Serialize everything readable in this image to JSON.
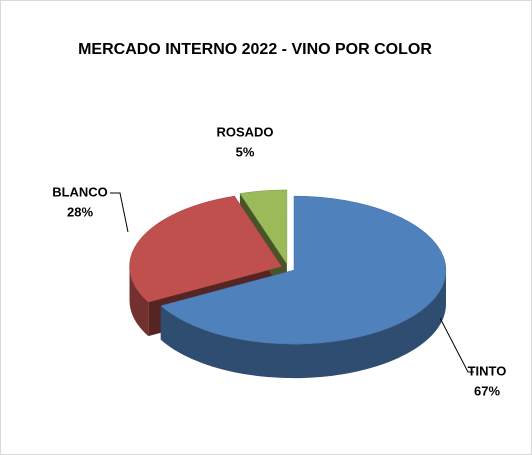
{
  "chart_data": {
    "type": "pie",
    "title": "MERCADO INTERNO 2022 - VINO POR COLOR",
    "categories": [
      "TINTO",
      "BLANCO",
      "ROSADO"
    ],
    "values": [
      67,
      28,
      5
    ],
    "value_labels": [
      "67%",
      "28%",
      "5%"
    ],
    "colors": [
      "#4f81bd",
      "#c0504d",
      "#9bbb59"
    ],
    "three_d": true
  }
}
